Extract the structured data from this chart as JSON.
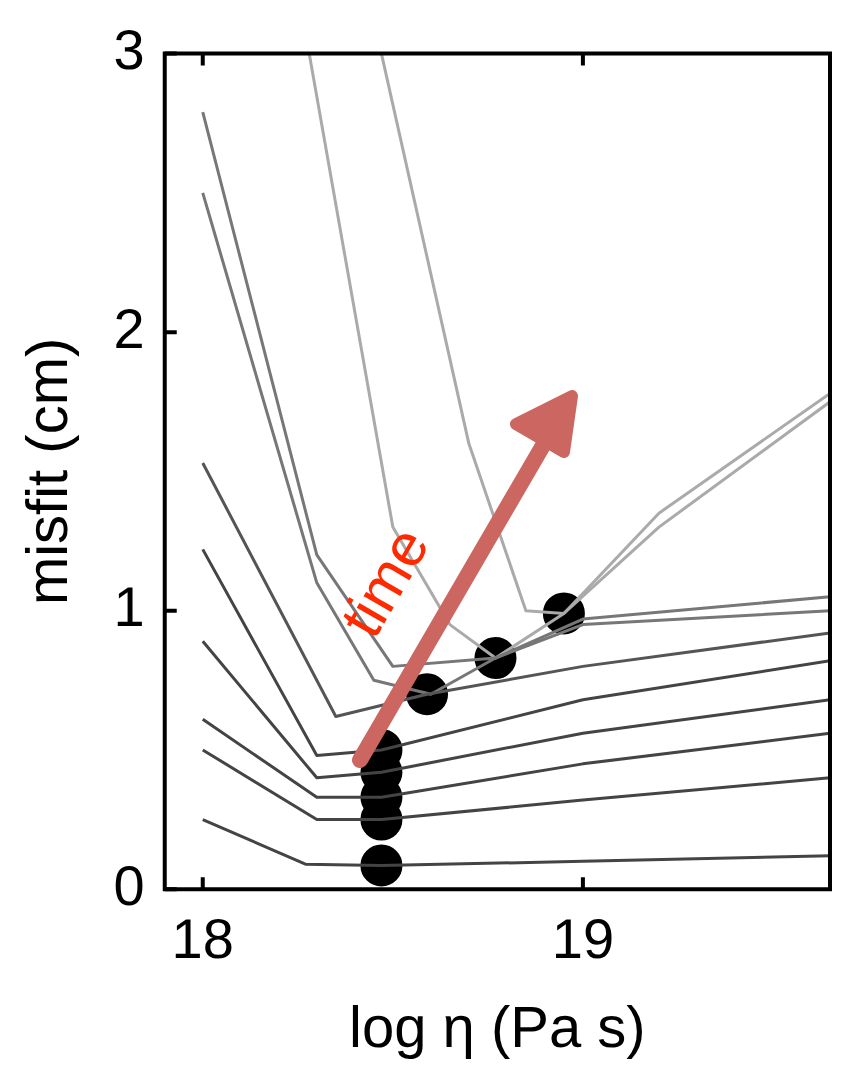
{
  "chart_data": {
    "type": "line",
    "xlabel": "log η (Pa s)",
    "ylabel": "misfit (cm)",
    "xlim": [
      17.9,
      19.65
    ],
    "ylim": [
      0,
      3
    ],
    "xticks": [
      18,
      19
    ],
    "yticks": [
      0,
      1,
      2,
      3
    ],
    "grid": false,
    "legend": false,
    "line_style": "solid",
    "annotations": [
      "time"
    ],
    "series": [
      {
        "color": "#444444",
        "x": [
          18,
          18.27,
          18.47,
          19,
          19.65
        ],
        "values": [
          0.25,
          0.09,
          0.085,
          0.1,
          0.12
        ]
      },
      {
        "color": "#444444",
        "x": [
          18,
          18.3,
          18.47,
          19,
          19.65
        ],
        "values": [
          0.5,
          0.25,
          0.25,
          0.32,
          0.4
        ]
      },
      {
        "color": "#444444",
        "x": [
          18,
          18.3,
          18.47,
          19,
          19.65
        ],
        "values": [
          0.61,
          0.33,
          0.33,
          0.45,
          0.56
        ]
      },
      {
        "color": "#444444",
        "x": [
          18,
          18.3,
          18.47,
          19,
          19.65
        ],
        "values": [
          0.89,
          0.4,
          0.42,
          0.56,
          0.68
        ]
      },
      {
        "color": "#444444",
        "x": [
          18,
          18.3,
          18.47,
          19,
          19.65
        ],
        "values": [
          1.22,
          0.48,
          0.5,
          0.68,
          0.82
        ]
      },
      {
        "color": "#555555",
        "x": [
          18,
          18.35,
          18.59,
          19,
          19.65
        ],
        "values": [
          1.53,
          0.62,
          0.7,
          0.8,
          0.92
        ]
      },
      {
        "color": "#777777",
        "x": [
          18,
          18.3,
          18.45,
          18.6,
          18.77,
          19,
          19.65
        ],
        "values": [
          2.5,
          1.1,
          0.75,
          0.7,
          0.83,
          0.95,
          1.0
        ]
      },
      {
        "color": "#777777",
        "x": [
          18,
          18.3,
          18.5,
          18.77,
          19,
          19.65
        ],
        "values": [
          2.79,
          1.2,
          0.8,
          0.83,
          0.97,
          1.05
        ]
      },
      {
        "color": "#aaaaaa",
        "x": [
          18.28,
          18.5,
          18.65,
          18.77,
          18.95,
          19.2,
          19.65
        ],
        "values": [
          3,
          1.3,
          0.95,
          0.83,
          0.99,
          1.3,
          1.75
        ]
      },
      {
        "color": "#aaaaaa",
        "x": [
          18.47,
          18.7,
          18.85,
          18.95,
          19.2,
          19.65
        ],
        "values": [
          3,
          1.6,
          1.0,
          0.99,
          1.35,
          1.78
        ]
      },
      {
        "type": "scatter",
        "marker": "circle",
        "color": "#000000",
        "x": [
          18.47,
          18.47,
          18.47,
          18.47,
          18.47,
          18.59,
          18.77,
          18.95
        ],
        "values": [
          0.085,
          0.25,
          0.33,
          0.42,
          0.5,
          0.7,
          0.83,
          0.99
        ]
      }
    ]
  }
}
